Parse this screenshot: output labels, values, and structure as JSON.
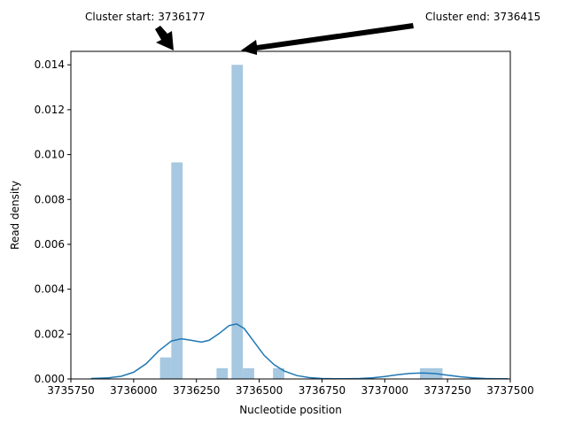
{
  "chart_data": {
    "type": "bar",
    "title": "",
    "xlabel": "Nucleotide position",
    "ylabel": "Read density",
    "xlim": [
      3735750,
      3737500
    ],
    "ylim": [
      0,
      0.0146
    ],
    "grid": false,
    "legend": "none",
    "colors": {
      "histogram": "#a6c8e0",
      "kde": "#1f77b4",
      "axes": "#000000"
    },
    "x_ticks": [
      {
        "value": 3735750,
        "label": "3735750"
      },
      {
        "value": 3736000,
        "label": "3736000"
      },
      {
        "value": 3736250,
        "label": "3736250"
      },
      {
        "value": 3736500,
        "label": "3736500"
      },
      {
        "value": 3736750,
        "label": "3736750"
      },
      {
        "value": 3737000,
        "label": "3737000"
      },
      {
        "value": 3737250,
        "label": "3737250"
      },
      {
        "value": 3737500,
        "label": "3737500"
      }
    ],
    "y_ticks": [
      {
        "value": 0,
        "label": "0.000"
      },
      {
        "value": 0.002,
        "label": "0.002"
      },
      {
        "value": 0.004,
        "label": "0.004"
      },
      {
        "value": 0.006,
        "label": "0.006"
      },
      {
        "value": 0.008,
        "label": "0.008"
      },
      {
        "value": 0.01,
        "label": "0.010"
      },
      {
        "value": 0.012,
        "label": "0.012"
      },
      {
        "value": 0.014,
        "label": "0.014"
      }
    ],
    "histogram": [
      {
        "x0": 3736105,
        "x1": 3736150,
        "density": 0.00096
      },
      {
        "x0": 3736150,
        "x1": 3736195,
        "density": 0.00965
      },
      {
        "x0": 3736330,
        "x1": 3736375,
        "density": 0.00048
      },
      {
        "x0": 3736390,
        "x1": 3736435,
        "density": 0.014
      },
      {
        "x0": 3736435,
        "x1": 3736480,
        "density": 0.00048
      },
      {
        "x0": 3736555,
        "x1": 3736600,
        "density": 0.00048
      },
      {
        "x0": 3737140,
        "x1": 3737230,
        "density": 0.00048
      }
    ],
    "kde": {
      "x": [
        3735830,
        3735900,
        3735950,
        3736000,
        3736050,
        3736100,
        3736150,
        3736190,
        3736230,
        3736270,
        3736300,
        3736340,
        3736380,
        3736410,
        3736440,
        3736480,
        3736520,
        3736560,
        3736600,
        3736650,
        3736700,
        3736750,
        3736800,
        3736850,
        3736900,
        3736950,
        3737000,
        3737050,
        3737100,
        3737150,
        3737200,
        3737250,
        3737300,
        3737350,
        3737400,
        3737450,
        3737490
      ],
      "y": [
        2e-05,
        5e-05,
        0.00012,
        0.0003,
        0.00068,
        0.00125,
        0.00169,
        0.00179,
        0.00172,
        0.00164,
        0.00172,
        0.00202,
        0.00238,
        0.00245,
        0.00225,
        0.00165,
        0.00105,
        0.00063,
        0.00035,
        0.00015,
        6e-05,
        2e-05,
        1e-05,
        1e-05,
        2e-05,
        5e-05,
        0.00011,
        0.00019,
        0.00025,
        0.00027,
        0.00024,
        0.00017,
        0.0001,
        5e-05,
        2e-05,
        1e-05,
        1e-05
      ]
    },
    "annotations": [
      {
        "text": "Cluster start: 3736177",
        "x": 3736177
      },
      {
        "text": "Cluster end: 3736415",
        "x": 3736415
      }
    ]
  }
}
